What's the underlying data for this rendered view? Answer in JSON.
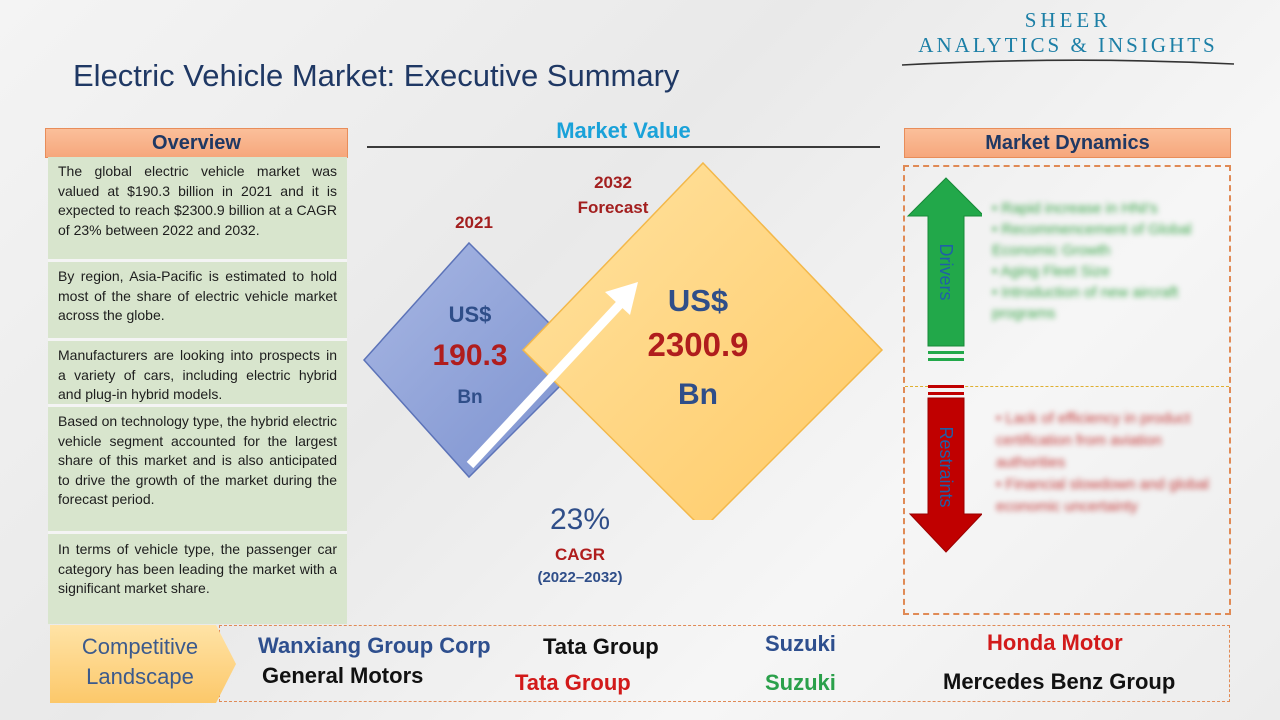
{
  "logo": {
    "line1": "SHEER",
    "line2": "ANALYTICS & INSIGHTS"
  },
  "title": "Electric Vehicle Market: Executive Summary",
  "overview": {
    "header": "Overview",
    "items": [
      "The global electric vehicle market was valued at $190.3 billion in 2021 and it is expected to reach $2300.9 billion at a CAGR of 23% between 2022 and 2032.",
      "By region, Asia-Pacific is estimated to hold most of the share of electric vehicle market across the globe.",
      "Manufacturers are looking into prospects in a variety of cars, including electric hybrid and plug-in hybrid models.",
      "Based on technology type, the hybrid electric vehicle segment accounted for the largest share of this market and is also anticipated to drive the growth of the market during the forecast period.",
      "In terms of vehicle type, the passenger car category has been leading the market with a significant market share."
    ]
  },
  "market_value": {
    "header": "Market Value",
    "year_2021": "2021",
    "currency_2021": "US$",
    "value_2021": "190.3",
    "unit_2021": "Bn",
    "year_2032": "2032",
    "forecast_label": "Forecast",
    "currency_2032": "US$",
    "value_2032": "2300.9",
    "unit_2032": "Bn",
    "cagr_value": "23%",
    "cagr_label": "CAGR",
    "cagr_period": "(2022–2032)"
  },
  "market_dynamics": {
    "header": "Market Dynamics",
    "drivers_label": "Drivers",
    "restraints_label": "Restraints",
    "drivers": [
      "Rapid increase in HNI's",
      "Recommencement of Global Economic Growth",
      "Aging Fleet Size",
      "Introduction of new aircraft programs"
    ],
    "restraints": [
      "Lack of efficiency in product certification from aviation authorities",
      "Financial slowdown and global economic uncertainty"
    ]
  },
  "competitive_landscape": {
    "label_line1": "Competitive",
    "label_line2": "Landscape",
    "companies": [
      "Wanxiang Group Corp",
      "Tata Group",
      "Suzuki",
      "Honda Motor",
      "General Motors",
      "Tata Group",
      "Suzuki",
      "Mercedes Benz Group"
    ]
  },
  "colors": {
    "title": "#1f3864",
    "overview_bg": "#d8e5cd",
    "header_bg": "#f6a77c",
    "diamond_2021": "#8a9fd6",
    "diamond_2032": "#ffd27a",
    "drivers_arrow": "#22a84a",
    "restraints_arrow": "#c00000",
    "market_value_title": "#1aa2d9"
  }
}
